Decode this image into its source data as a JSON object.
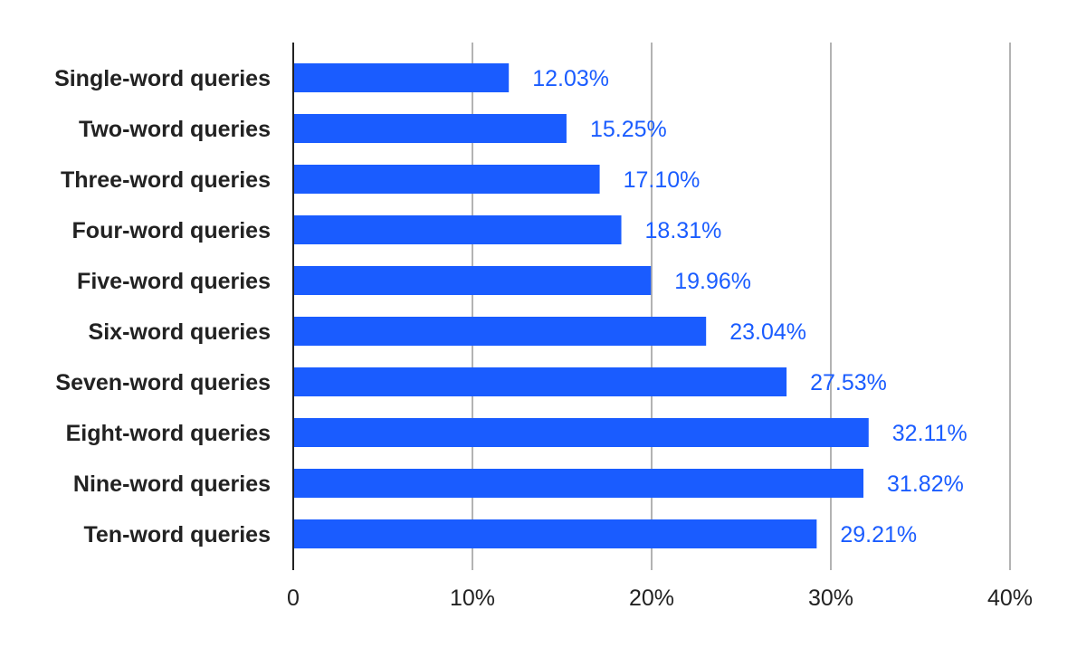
{
  "chart_data": {
    "type": "bar",
    "orientation": "horizontal",
    "title": "",
    "xlabel": "",
    "ylabel": "",
    "categories": [
      "Single-word queries",
      "Two-word queries",
      "Three-word queries",
      "Four-word queries",
      "Five-word queries",
      "Six-word queries",
      "Seven-word queries",
      "Eight-word queries",
      "Nine-word queries",
      "Ten-word queries"
    ],
    "values": [
      12.03,
      15.25,
      17.1,
      18.31,
      19.96,
      23.04,
      27.53,
      32.11,
      31.82,
      29.21
    ],
    "value_labels": [
      "12.03%",
      "15.25%",
      "17.10%",
      "18.31%",
      "19.96%",
      "23.04%",
      "27.53%",
      "32.11%",
      "31.82%",
      "29.21%"
    ],
    "xlim": [
      0,
      40
    ],
    "x_ticks": [
      0,
      10,
      20,
      30,
      40
    ],
    "x_tick_labels": [
      "0",
      "10%",
      "20%",
      "30%",
      "40%"
    ],
    "grid": "vertical",
    "legend": "none",
    "colors": {
      "bar": "#1a5cff",
      "value_label": "#1a5cff",
      "grid": "#9a9a9a",
      "text": "#222222"
    }
  }
}
